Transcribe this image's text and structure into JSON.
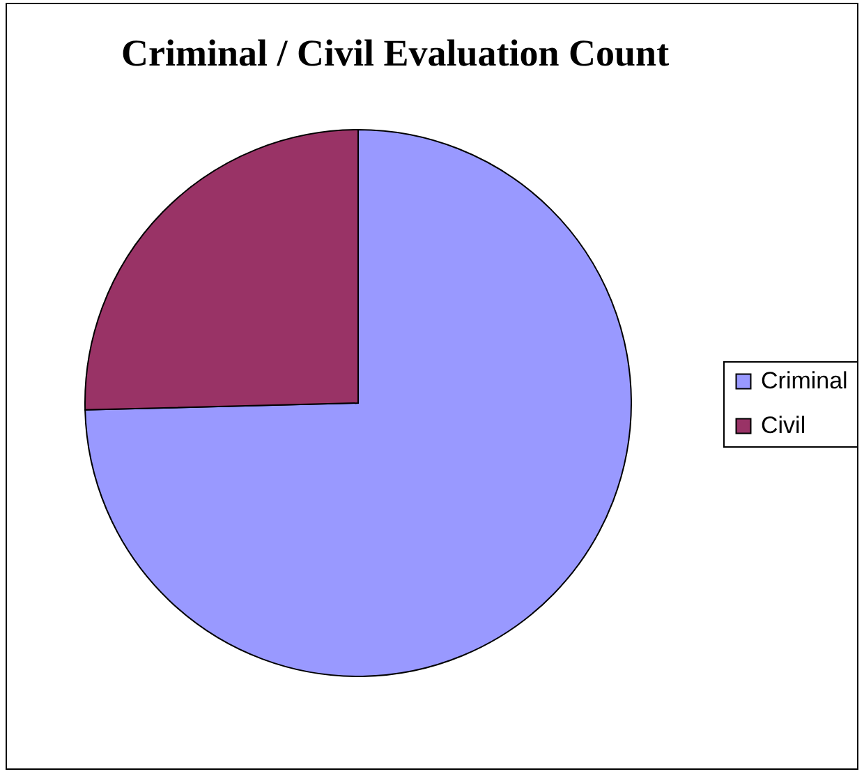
{
  "chart_data": {
    "type": "pie",
    "title": "Criminal / Civil Evaluation Count",
    "categories": [
      "Criminal",
      "Civil"
    ],
    "values": [
      74.6,
      25.4
    ],
    "colors": [
      "#9999ff",
      "#993366"
    ],
    "legend": "right"
  }
}
